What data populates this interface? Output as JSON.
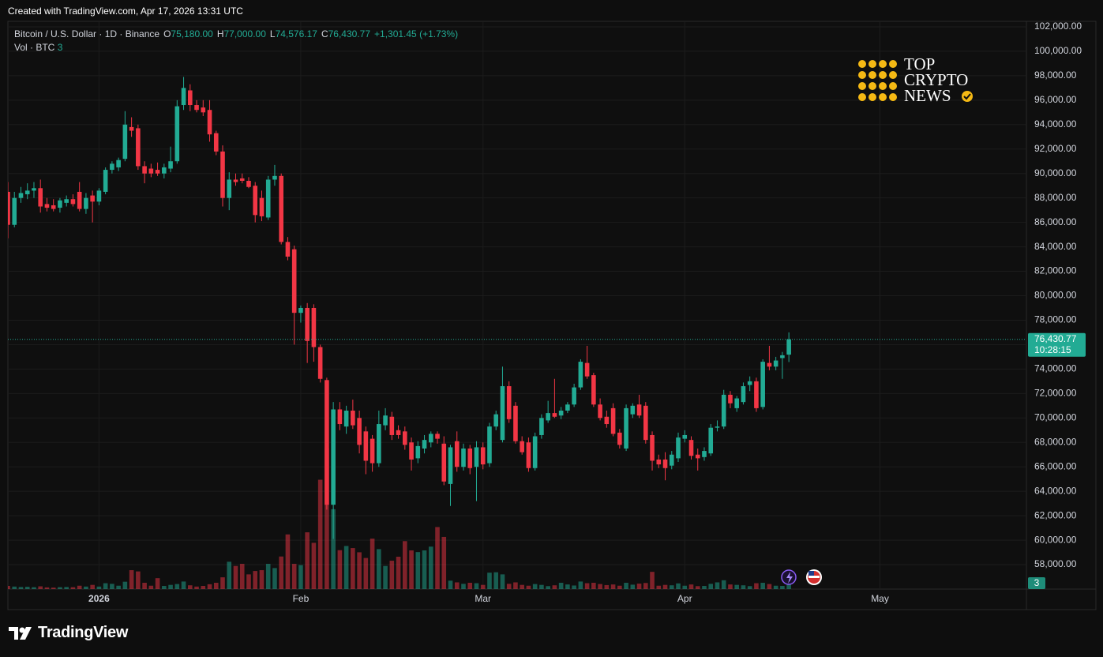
{
  "created_note": "Created with TradingView.com, Apr 17, 2026 13:31 UTC",
  "footer_brand": "TradingView",
  "watermark": [
    "TOP",
    "CRYPTO",
    "NEWS"
  ],
  "chart_data": {
    "type": "candlestick",
    "legend": {
      "symbol": "Bitcoin / U.S. Dollar · 1D · Binance",
      "ohlc": [
        {
          "key": "O",
          "value": "75,180.00"
        },
        {
          "key": "H",
          "value": "77,000.00"
        },
        {
          "key": "L",
          "value": "74,576.17"
        },
        {
          "key": "C",
          "value": "76,430.77"
        }
      ],
      "change": "+1,301.45 (+1.73%)",
      "volume_name": "Vol · BTC"
    },
    "last_price_label": "76,430.77",
    "countdown": "10:28:15",
    "up_color": "#22ab94",
    "down_color": "#f23645",
    "grid": true,
    "xlim": [
      0,
      156.5
    ],
    "xticks": [
      {
        "value": 14,
        "label": "2026"
      },
      {
        "value": 45,
        "label": "Feb"
      },
      {
        "value": 73,
        "label": "Mar"
      },
      {
        "value": 104,
        "label": "Apr"
      },
      {
        "value": 134,
        "label": "May"
      }
    ],
    "ylim": [
      56000,
      102450
    ],
    "yticks": [
      {
        "value": 102000,
        "label": "102,000.00"
      },
      {
        "value": 100000,
        "label": "100,000.00"
      },
      {
        "value": 98000,
        "label": "98,000.00"
      },
      {
        "value": 96000,
        "label": "96,000.00"
      },
      {
        "value": 94000,
        "label": "94,000.00"
      },
      {
        "value": 92000,
        "label": "92,000.00"
      },
      {
        "value": 90000,
        "label": "90,000.00"
      },
      {
        "value": 88000,
        "label": "88,000.00"
      },
      {
        "value": 86000,
        "label": "86,000.00"
      },
      {
        "value": 84000,
        "label": "84,000.00"
      },
      {
        "value": 82000,
        "label": "82,000.00"
      },
      {
        "value": 80000,
        "label": "80,000.00"
      },
      {
        "value": 78000,
        "label": "78,000.00"
      },
      {
        "value": 76000,
        "label": "76,000.00"
      },
      {
        "value": 74000,
        "label": "74,000.00"
      },
      {
        "value": 72000,
        "label": "72,000.00"
      },
      {
        "value": 70000,
        "label": "70,000.00"
      },
      {
        "value": 68000,
        "label": "68,000.00"
      },
      {
        "value": 66000,
        "label": "66,000.00"
      },
      {
        "value": 64000,
        "label": "64,000.00"
      },
      {
        "value": 62000,
        "label": "62,000.00"
      },
      {
        "value": 60000,
        "label": "60,000.00"
      },
      {
        "value": 58000,
        "label": "58,000.00"
      }
    ],
    "vlim": [
      0,
      270
    ],
    "open": [
      88500,
      85800,
      88000,
      88300,
      88600,
      88800,
      87500,
      87400,
      87200,
      87600,
      87900,
      88500,
      87100,
      88200,
      87700,
      88500,
      90300,
      90500,
      91200,
      93800,
      93700,
      90600,
      90400,
      90300,
      90000,
      90400,
      91000,
      95600,
      96800,
      95600,
      95400,
      95200,
      93300,
      91800,
      88000,
      89500,
      89600,
      89400,
      89000,
      88000,
      86400,
      89500,
      89800,
      84400,
      83800,
      78600,
      79000,
      79000,
      75800,
      73100,
      62900,
      70700,
      69300,
      70600,
      70000,
      68900,
      68300,
      66300,
      69400,
      70100,
      69000,
      68900,
      68000,
      66700,
      67500,
      68000,
      68700,
      67900,
      64600,
      68100,
      66000,
      67500,
      66000,
      67600,
      66300,
      69300,
      68200,
      72600,
      71000,
      68100,
      68000,
      65900,
      68600,
      69800,
      70400,
      70200,
      70600,
      71100,
      72500,
      74500,
      73500,
      71100,
      70100,
      70800,
      68800,
      67500,
      70300,
      71100,
      71000,
      68600,
      66600,
      66600,
      66100,
      66700,
      68300,
      68200,
      67000,
      66800,
      67100,
      69200,
      69300,
      71900,
      70800,
      71300,
      72700,
      73000,
      70900,
      74500,
      74200,
      74900,
      75180
    ],
    "high": [
      89300,
      88500,
      88900,
      89200,
      89300,
      89500,
      88000,
      87900,
      88000,
      88200,
      88300,
      89300,
      88400,
      88600,
      88800,
      90500,
      91000,
      91300,
      95100,
      94600,
      94000,
      91000,
      90800,
      90900,
      90800,
      92200,
      96000,
      97900,
      97300,
      96000,
      96000,
      96000,
      93500,
      92300,
      90100,
      90000,
      90000,
      89700,
      89300,
      88600,
      89800,
      90700,
      90000,
      84800,
      84100,
      79200,
      79400,
      79300,
      76000,
      73300,
      71300,
      71300,
      71000,
      71500,
      70600,
      69300,
      68600,
      70600,
      70800,
      70500,
      69400,
      69300,
      68400,
      68100,
      68600,
      68900,
      68900,
      68500,
      67800,
      68900,
      67900,
      67800,
      68100,
      68000,
      69600,
      70600,
      74200,
      73000,
      71300,
      68500,
      68400,
      68800,
      70300,
      71400,
      73200,
      70900,
      71300,
      72800,
      74800,
      75900,
      73700,
      71600,
      70600,
      71200,
      69100,
      71100,
      71200,
      71900,
      71300,
      68900,
      67000,
      67200,
      67300,
      68800,
      69000,
      68500,
      67500,
      67600,
      69500,
      69800,
      72300,
      72200,
      71800,
      72900,
      73400,
      73300,
      74800,
      75900,
      75000,
      75400,
      77000
    ],
    "low": [
      84700,
      85600,
      87600,
      87900,
      88000,
      86800,
      86900,
      86900,
      86800,
      87300,
      87300,
      86900,
      86700,
      86000,
      87400,
      88300,
      90000,
      90200,
      91000,
      93000,
      90300,
      89200,
      89700,
      89800,
      89600,
      90100,
      90800,
      95200,
      95100,
      95000,
      94700,
      92600,
      91500,
      87300,
      87000,
      89000,
      89200,
      88800,
      86000,
      86100,
      86200,
      89000,
      84200,
      82900,
      76000,
      77800,
      74500,
      74600,
      72900,
      62500,
      60100,
      69000,
      68700,
      69100,
      67100,
      65400,
      65600,
      66000,
      69000,
      68200,
      68300,
      67400,
      65700,
      66300,
      67100,
      67600,
      67900,
      64500,
      62800,
      65600,
      65700,
      65400,
      63200,
      65800,
      66000,
      69000,
      68000,
      69600,
      67900,
      67000,
      65600,
      65700,
      68300,
      69600,
      70000,
      69900,
      70400,
      70900,
      72300,
      73200,
      70900,
      69800,
      69200,
      68500,
      67500,
      67300,
      70000,
      70000,
      67900,
      65700,
      65900,
      64900,
      65800,
      66400,
      68000,
      66600,
      65700,
      66500,
      66900,
      68900,
      69100,
      70800,
      70500,
      71100,
      72200,
      70500,
      70700,
      73900,
      73900,
      73200,
      74576.17
    ],
    "close": [
      85800,
      88000,
      88400,
      88600,
      88800,
      87300,
      87200,
      87100,
      87800,
      87900,
      87500,
      87100,
      88000,
      87700,
      88600,
      90300,
      90800,
      91100,
      94000,
      93500,
      90600,
      90000,
      90000,
      90000,
      90500,
      91000,
      95500,
      97000,
      95600,
      95200,
      95000,
      93200,
      91800,
      88000,
      89500,
      89300,
      89400,
      88900,
      86600,
      86500,
      89500,
      89800,
      84400,
      83200,
      78600,
      79000,
      76300,
      75800,
      73200,
      62900,
      70700,
      69500,
      70600,
      69400,
      67800,
      66500,
      66300,
      69500,
      70200,
      68600,
      68600,
      67800,
      66600,
      67700,
      68200,
      68700,
      68300,
      64800,
      67600,
      66000,
      67500,
      65900,
      67600,
      66200,
      69300,
      70300,
      72600,
      69900,
      68100,
      67200,
      65900,
      68500,
      70000,
      70400,
      70100,
      70600,
      71100,
      72500,
      74600,
      73400,
      71100,
      70000,
      69500,
      68700,
      67800,
      70800,
      71000,
      70200,
      68200,
      66500,
      66200,
      65900,
      67000,
      68400,
      68600,
      66900,
      66700,
      67300,
      69200,
      69300,
      71900,
      71200,
      71600,
      72600,
      73000,
      70800,
      74600,
      74200,
      74700,
      75129.32,
      76430.77
    ],
    "volume": [
      1.5,
      1.2,
      1,
      1.1,
      0.9,
      1.3,
      0.8,
      0.7,
      0.9,
      1,
      0.9,
      1.6,
      1.2,
      2,
      1.2,
      2.8,
      2.5,
      1.6,
      3.5,
      9,
      8.4,
      3,
      1.6,
      5.2,
      1.5,
      2,
      2.4,
      3.6,
      1.8,
      1.2,
      1.5,
      2.3,
      3,
      5.6,
      13,
      11,
      12,
      7,
      8.6,
      9,
      12,
      10,
      15.5,
      26,
      12,
      11.4,
      27,
      22,
      52,
      67,
      38,
      18.5,
      20.5,
      19.5,
      17.5,
      14.8,
      24,
      19,
      11,
      13.5,
      15.4,
      22.8,
      18.4,
      17.6,
      18.4,
      20.2,
      29.5,
      24.8,
      4,
      3.2,
      2.5,
      3,
      2.8,
      2,
      7.8,
      8,
      7,
      2.5,
      3.2,
      2,
      1.6,
      2.4,
      2,
      1.4,
      1.8,
      3,
      2.2,
      1.7,
      3.6,
      2.8,
      3,
      2.4,
      1.9,
      2.2,
      1.6,
      3,
      2.1,
      2.6,
      2.9,
      8.2,
      1.6,
      2,
      1.8,
      2.7,
      1.6,
      2.2,
      1.4,
      1.5,
      2.5,
      3.2,
      4.2,
      2.2,
      2,
      1.8,
      1.4,
      2.8,
      3,
      2.4,
      1.6,
      1.5,
      3
    ]
  }
}
